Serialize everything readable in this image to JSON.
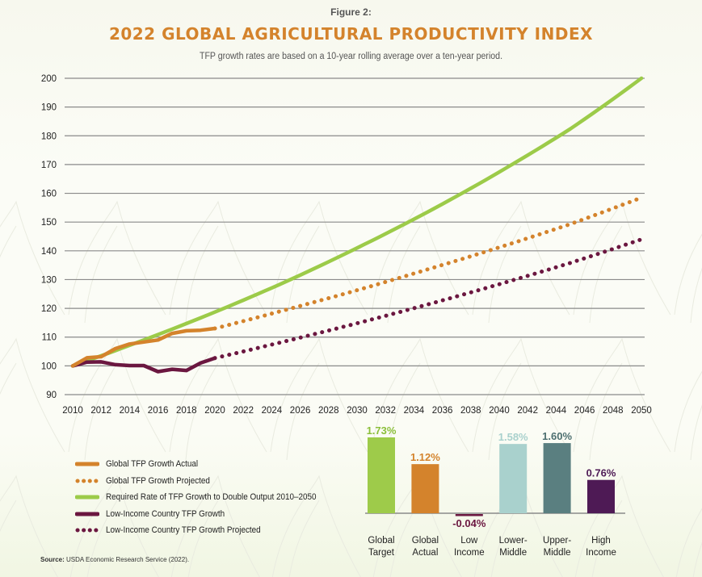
{
  "header": {
    "figure_label": "Figure 2:",
    "title": "2022 GLOBAL AGRICULTURAL PRODUCTIVITY INDEX",
    "subtitle": "TFP growth rates are based on a 10-year rolling average over a ten-year period."
  },
  "colors": {
    "title": "#d4832c",
    "global_actual": "#d4832c",
    "global_projected": "#d4832c",
    "required": "#9ccb49",
    "low_income": "#6b1740",
    "low_income_projected": "#6b1740",
    "grid": "#8a8a8a"
  },
  "chart_data": [
    {
      "type": "line",
      "title": "2022 GLOBAL AGRICULTURAL PRODUCTIVITY INDEX",
      "xlabel": "",
      "ylabel": "",
      "xlim": [
        2010,
        2050
      ],
      "ylim": [
        90,
        200
      ],
      "x_ticks": [
        2010,
        2012,
        2014,
        2016,
        2018,
        2020,
        2022,
        2024,
        2026,
        2028,
        2030,
        2032,
        2034,
        2036,
        2038,
        2040,
        2042,
        2044,
        2046,
        2048,
        2050
      ],
      "y_ticks": [
        90,
        100,
        110,
        120,
        130,
        140,
        150,
        160,
        170,
        180,
        190,
        200
      ],
      "grid": "horizontal",
      "legend_position": "bottom-left",
      "series": [
        {
          "key": "global_actual",
          "name": "Global TFP Growth Actual",
          "style": "solid",
          "x": [
            2010,
            2011,
            2012,
            2013,
            2014,
            2015,
            2016,
            2017,
            2018,
            2019,
            2020
          ],
          "y": [
            100,
            102.8,
            103.2,
            106.0,
            107.6,
            108.3,
            109.0,
            111.3,
            112.2,
            112.4,
            113.0
          ]
        },
        {
          "key": "global_projected",
          "name": "Global TFP Growth Projected",
          "style": "dotted",
          "x": [
            2020,
            2025,
            2030,
            2035,
            2040,
            2045,
            2050
          ],
          "y": [
            113.0,
            119.5,
            126.3,
            133.6,
            141.2,
            149.3,
            158.5
          ]
        },
        {
          "key": "required",
          "name": "Required Rate of TFP Growth to Double Output 2010–2050",
          "style": "solid",
          "x": [
            2010,
            2015,
            2020,
            2025,
            2030,
            2035,
            2040,
            2045,
            2050
          ],
          "y": [
            100,
            109.0,
            118.7,
            129.3,
            141.0,
            153.6,
            167.4,
            182.4,
            200.0
          ]
        },
        {
          "key": "low_income",
          "name": "Low-Income Country TFP Growth",
          "style": "solid",
          "x": [
            2010,
            2011,
            2012,
            2013,
            2014,
            2015,
            2016,
            2017,
            2018,
            2019,
            2020
          ],
          "y": [
            100,
            101.3,
            101.4,
            100.4,
            100.1,
            100.1,
            98.0,
            98.8,
            98.4,
            101.0,
            102.7
          ]
        },
        {
          "key": "low_income_projected",
          "name": "Low-Income Country TFP Growth Projected",
          "style": "dotted",
          "x": [
            2020,
            2025,
            2030,
            2035,
            2040,
            2045,
            2050
          ],
          "y": [
            102.7,
            108.6,
            114.8,
            121.4,
            128.4,
            135.8,
            144.0
          ]
        }
      ]
    },
    {
      "type": "bar",
      "title": "",
      "categories": [
        "Global Target",
        "Global Actual",
        "Low Income",
        "Lower-Middle",
        "Upper-Middle",
        "High Income"
      ],
      "category_lines": [
        [
          "Global",
          "Target"
        ],
        [
          "Global",
          "Actual"
        ],
        [
          "Low",
          "Income"
        ],
        [
          "Lower-",
          "Middle"
        ],
        [
          "Upper-",
          "Middle"
        ],
        [
          "High",
          "Income"
        ]
      ],
      "values": [
        1.73,
        1.12,
        -0.04,
        1.58,
        1.6,
        0.76
      ],
      "value_labels": [
        "1.73%",
        "1.12%",
        "-0.04%",
        "1.58%",
        "1.60%",
        "0.76%"
      ],
      "colors": [
        "#9ecb4a",
        "#d4832c",
        "#6b1740",
        "#a9d1cd",
        "#5a7f80",
        "#4e1a55"
      ],
      "label_colors": [
        "#8bbf3a",
        "#d4832c",
        "#6b1740",
        "#a9d1cd",
        "#4d6f70",
        "#4e1a55"
      ],
      "ylim": [
        -0.1,
        1.8
      ]
    }
  ],
  "footer": {
    "source_label": "Source:",
    "source_text": " USDA Economic Research Service (2022)."
  }
}
